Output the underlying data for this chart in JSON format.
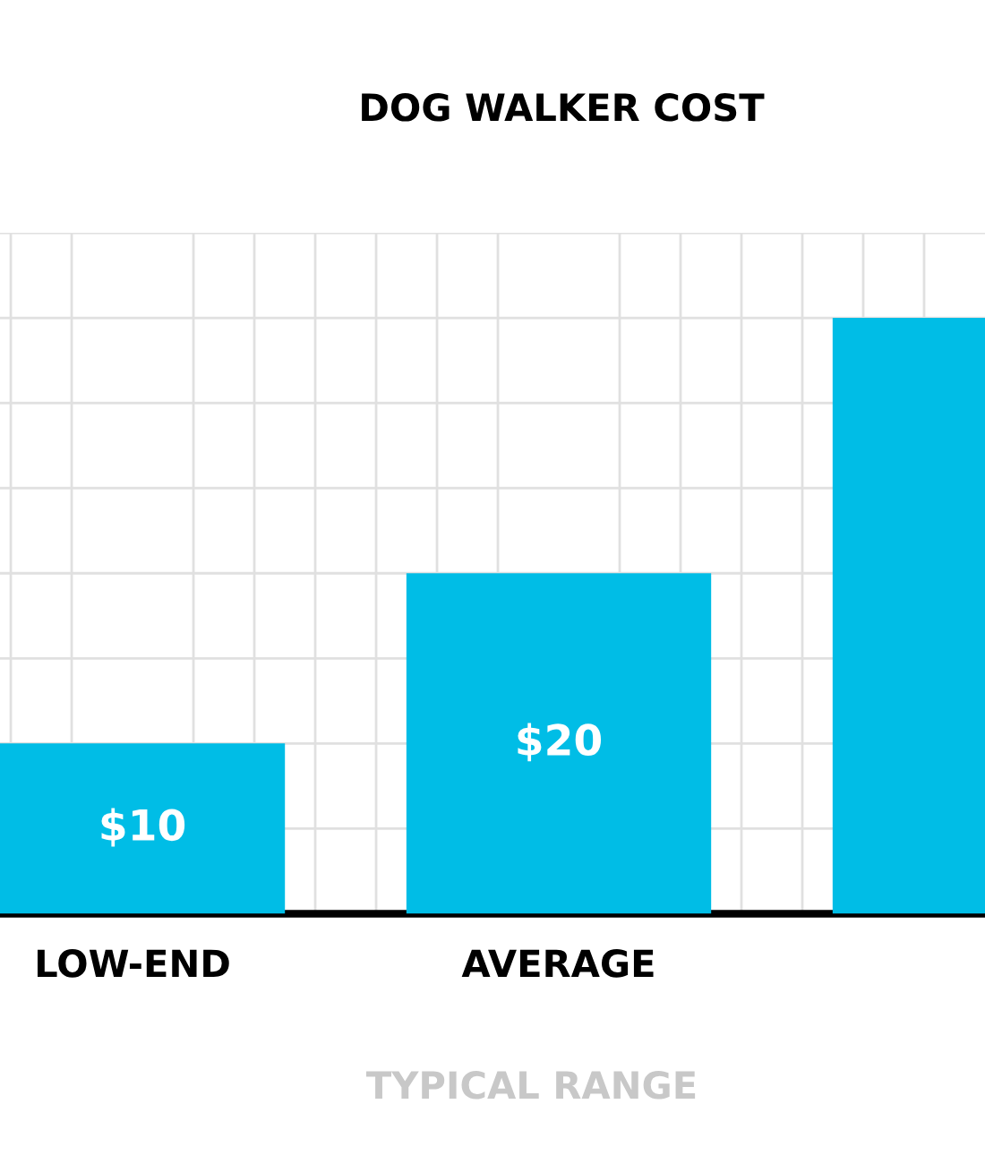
{
  "chart_data": {
    "type": "bar",
    "title": "DOG WALKER COST",
    "categories": [
      "LOW-END",
      "AVERAGE",
      null
    ],
    "values": [
      10,
      20,
      35
    ],
    "value_labels": [
      "$10",
      "$20",
      null
    ],
    "color": "#00bde6",
    "ylim": [
      0,
      40
    ],
    "yticks": [
      {
        "value": 0,
        "label": null
      },
      {
        "value": 5,
        "label": null
      },
      {
        "value": 10,
        "label": null
      },
      {
        "value": 15,
        "label": null
      },
      {
        "value": 20,
        "label": null
      },
      {
        "value": 25,
        "label": null
      },
      {
        "value": 30,
        "label": null
      },
      {
        "value": 35,
        "label": null
      },
      {
        "value": 40,
        "label": null
      }
    ],
    "tick_labels": "x",
    "grid": true,
    "legend": false,
    "annotations": [
      "TYPICAL RANGE"
    ]
  }
}
